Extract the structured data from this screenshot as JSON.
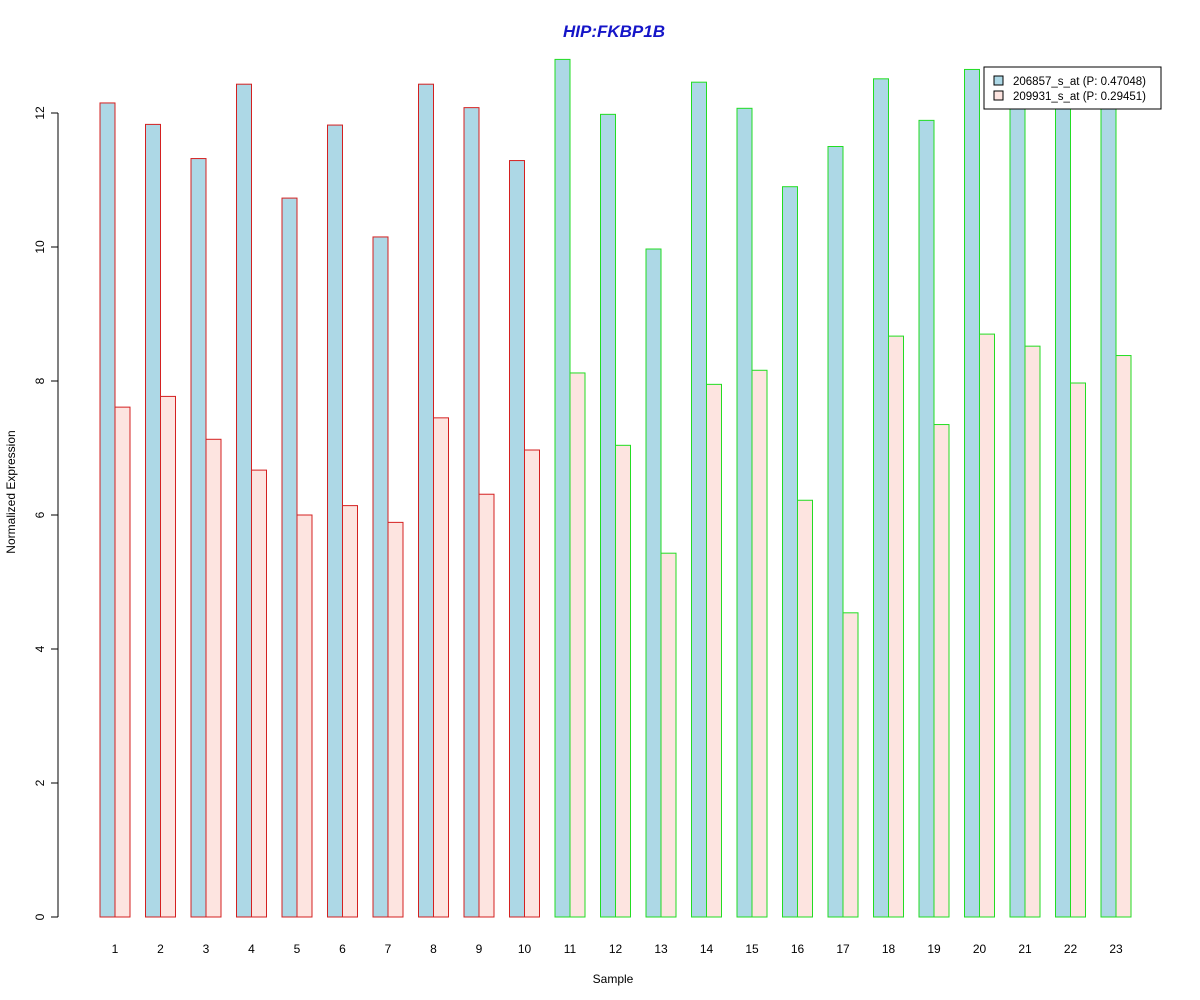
{
  "chart_data": {
    "type": "bar",
    "title": "HIP:FKBP1B",
    "xlabel": "Sample",
    "ylabel": "Normalized Expression",
    "ylim": [
      0,
      13
    ],
    "yticks": [
      0,
      2,
      4,
      6,
      8,
      10,
      12
    ],
    "grid": false,
    "legend_position": "top-right",
    "categories": [
      "1",
      "2",
      "3",
      "4",
      "5",
      "6",
      "7",
      "8",
      "9",
      "10",
      "11",
      "12",
      "13",
      "14",
      "15",
      "16",
      "17",
      "18",
      "19",
      "20",
      "21",
      "22",
      "23"
    ],
    "series": [
      {
        "name": "206857_s_at (P: 0.47048)",
        "fill": "#add8e6",
        "values": [
          12.15,
          11.83,
          11.32,
          12.43,
          10.73,
          11.82,
          10.15,
          12.43,
          12.08,
          11.29,
          12.8,
          11.98,
          9.97,
          12.46,
          12.07,
          10.9,
          11.5,
          12.51,
          11.89,
          12.65,
          12.14,
          12.15,
          12.1
        ]
      },
      {
        "name": "209931_s_at (P: 0.29451)",
        "fill": "#fde4e0",
        "values": [
          7.61,
          7.77,
          7.13,
          6.67,
          6.0,
          6.14,
          5.89,
          7.45,
          6.31,
          6.97,
          8.12,
          7.04,
          5.43,
          7.95,
          8.16,
          6.22,
          4.54,
          8.67,
          7.35,
          8.7,
          8.52,
          7.97,
          8.38
        ]
      }
    ],
    "group_border_colors": [
      "#d42020",
      "#d42020",
      "#d42020",
      "#d42020",
      "#d42020",
      "#d42020",
      "#d42020",
      "#d42020",
      "#d42020",
      "#d42020",
      "#22dd22",
      "#22dd22",
      "#22dd22",
      "#22dd22",
      "#22dd22",
      "#22dd22",
      "#22dd22",
      "#22dd22",
      "#22dd22",
      "#22dd22",
      "#22dd22",
      "#22dd22",
      "#22dd22"
    ],
    "colors": {
      "title": "#1515c8",
      "axis": "#000000"
    }
  }
}
